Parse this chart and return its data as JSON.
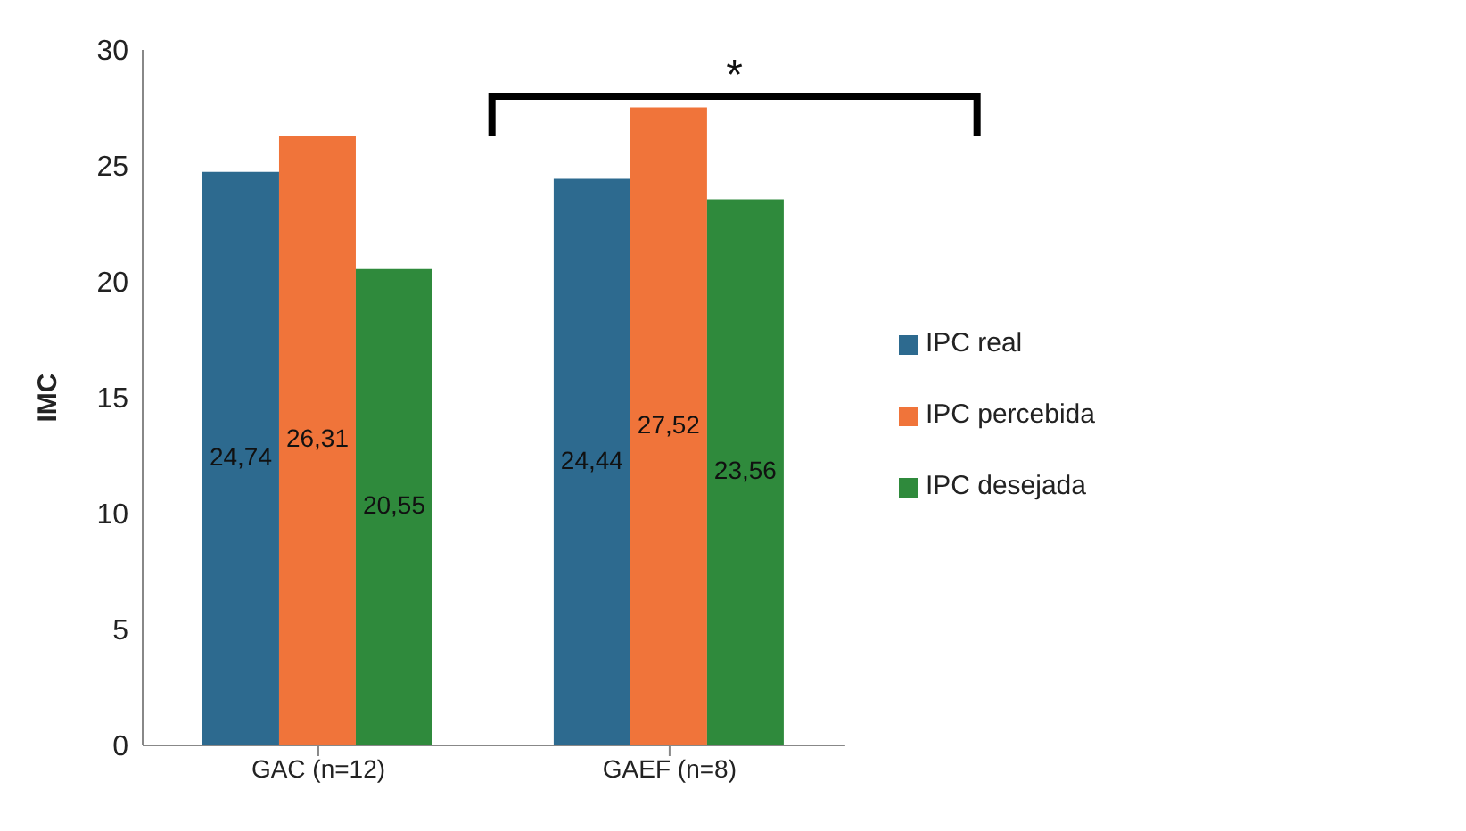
{
  "chart_data": {
    "type": "bar",
    "ylabel": "IMC",
    "categories": [
      "GAC (n=12)",
      "GAEF (n=8)"
    ],
    "series": [
      {
        "name": "IPC real",
        "color": "#2d6a8f",
        "values": [
          24.74,
          24.44
        ],
        "value_labels": [
          "24,74",
          "24,44"
        ]
      },
      {
        "name": "IPC percebida",
        "color": "#f0743a",
        "values": [
          26.31,
          27.52
        ],
        "value_labels": [
          "26,31",
          "27,52"
        ]
      },
      {
        "name": "IPC desejada",
        "color": "#2f8a3c",
        "values": [
          20.55,
          23.56
        ],
        "value_labels": [
          "20,55",
          "23,56"
        ]
      }
    ],
    "ylim": [
      0,
      30
    ],
    "yticks": [
      0,
      5,
      10,
      15,
      20,
      25,
      30
    ],
    "legend": "right",
    "annotations": [
      "*"
    ]
  }
}
